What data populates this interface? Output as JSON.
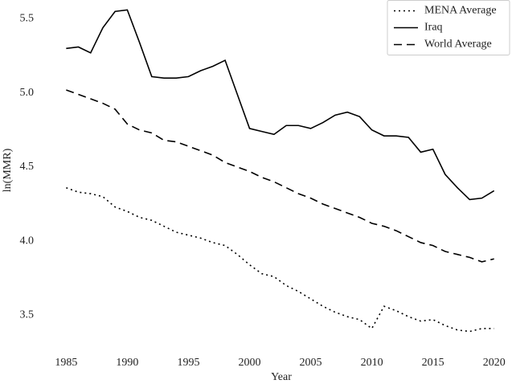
{
  "chart_data": {
    "type": "line",
    "x_label": "Year",
    "y_label": "ln(MMR)",
    "x": [
      1985,
      1986,
      1987,
      1988,
      1989,
      1990,
      1991,
      1992,
      1993,
      1994,
      1995,
      1996,
      1997,
      1998,
      1999,
      2000,
      2001,
      2002,
      2003,
      2004,
      2005,
      2006,
      2007,
      2008,
      2009,
      2010,
      2011,
      2012,
      2013,
      2014,
      2015,
      2016,
      2017,
      2018,
      2019,
      2020
    ],
    "series": [
      {
        "name": "MENA Average",
        "color": "#000000",
        "dash": "dotted",
        "values": [
          4.36,
          4.33,
          4.32,
          4.3,
          4.23,
          4.2,
          4.16,
          4.14,
          4.1,
          4.06,
          4.04,
          4.02,
          3.99,
          3.97,
          3.91,
          3.84,
          3.78,
          3.76,
          3.7,
          3.66,
          3.61,
          3.56,
          3.52,
          3.49,
          3.47,
          3.41,
          3.56,
          3.53,
          3.49,
          3.46,
          3.47,
          3.43,
          3.4,
          3.39,
          3.41,
          3.41
        ]
      },
      {
        "name": "Iraq",
        "color": "#000000",
        "dash": "solid",
        "values": [
          5.3,
          5.31,
          5.27,
          5.44,
          5.55,
          5.56,
          5.34,
          5.11,
          5.1,
          5.1,
          5.11,
          5.15,
          5.18,
          5.22,
          4.99,
          4.76,
          4.74,
          4.72,
          4.78,
          4.78,
          4.76,
          4.8,
          4.85,
          4.87,
          4.84,
          4.75,
          4.71,
          4.71,
          4.7,
          4.6,
          4.62,
          4.45,
          4.36,
          4.28,
          4.29,
          4.34
        ]
      },
      {
        "name": "World Average",
        "color": "#000000",
        "dash": "dashed",
        "values": [
          5.02,
          4.99,
          4.96,
          4.93,
          4.89,
          4.79,
          4.75,
          4.73,
          4.68,
          4.67,
          4.64,
          4.61,
          4.58,
          4.53,
          4.5,
          4.47,
          4.43,
          4.4,
          4.36,
          4.32,
          4.29,
          4.25,
          4.22,
          4.19,
          4.16,
          4.12,
          4.1,
          4.07,
          4.03,
          3.99,
          3.97,
          3.93,
          3.91,
          3.89,
          3.86,
          3.88
        ]
      }
    ],
    "xlim": [
      1983.4,
      2021.4
    ],
    "xticks": [
      1985,
      1990,
      1995,
      2000,
      2005,
      2010,
      2015,
      2020
    ],
    "ylim": [
      3.35,
      5.6
    ],
    "yticks": [
      {
        "value": 3.5,
        "label": "3.5"
      },
      {
        "value": 4,
        "label": "4.0"
      },
      {
        "value": 4.5,
        "label": "4.5"
      },
      {
        "value": 5,
        "label": "5.0"
      },
      {
        "value": 5.5,
        "label": "5.5"
      }
    ],
    "grid": false,
    "legend": "upper right"
  }
}
